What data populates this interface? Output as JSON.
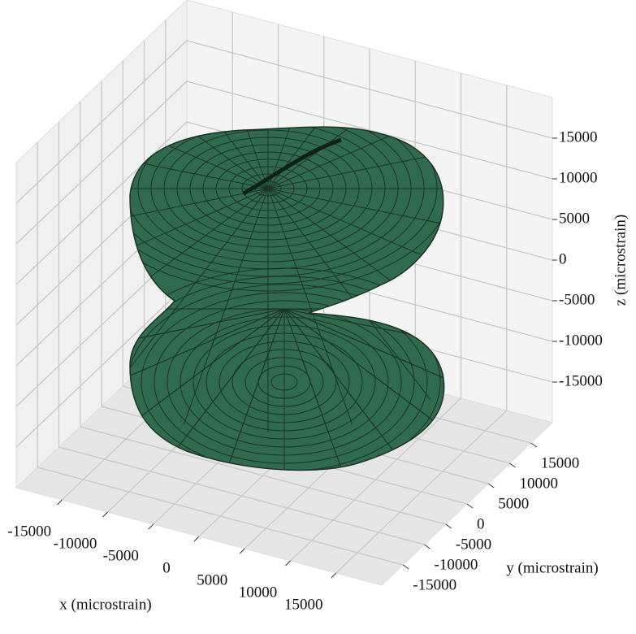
{
  "chart_data": {
    "type": "surface3d",
    "xlabel": "x (microstrain)",
    "ylabel": "y (microstrain)",
    "zlabel": "z (microstrain)",
    "xlim": [
      -20000,
      20000
    ],
    "ylim": [
      -20000,
      20000
    ],
    "zlim": [
      -20000,
      20000
    ],
    "xticks": [
      -15000,
      -10000,
      -5000,
      0,
      5000,
      10000,
      15000
    ],
    "yticks": [
      -15000,
      -10000,
      -5000,
      0,
      5000,
      10000,
      15000
    ],
    "zticks": [
      -15000,
      -10000,
      -5000,
      0,
      5000,
      10000,
      15000
    ],
    "grid": true,
    "color": "#2f6b4c"
  }
}
